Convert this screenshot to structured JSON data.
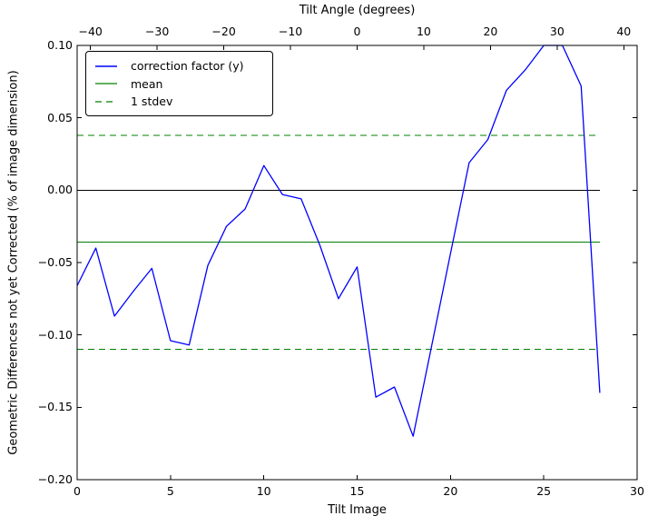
{
  "figure": {
    "background": "#ffffff"
  },
  "chart_data": {
    "type": "line",
    "top_axis_label": "Tilt Angle (degrees)",
    "bottom_axis_label": "Tilt Image",
    "y_axis_label": "Geometric Differences not yet Corrected (% of image dimension)",
    "axes": {
      "grid": false,
      "x_bottom": {
        "lim": [
          0,
          30
        ],
        "ticks": [
          0,
          5,
          10,
          15,
          20,
          25,
          30
        ],
        "tick_labels": [
          "0",
          "5",
          "10",
          "15",
          "20",
          "25",
          "30"
        ]
      },
      "x_top": {
        "lim": [
          -42,
          42
        ],
        "ticks": [
          -40,
          -30,
          -20,
          -10,
          0,
          10,
          20,
          30,
          40
        ],
        "tick_labels": [
          "−40",
          "−30",
          "−20",
          "−10",
          "0",
          "10",
          "20",
          "30",
          "40"
        ]
      },
      "y": {
        "lim": [
          -0.2,
          0.1
        ],
        "ticks": [
          0.1,
          0.05,
          0.0,
          -0.05,
          -0.1,
          -0.15,
          -0.2
        ],
        "tick_labels": [
          "0.10",
          "0.05",
          "0.00",
          "−0.05",
          "−0.10",
          "−0.15",
          "−0.20"
        ]
      }
    },
    "series": [
      {
        "name": "zero-line",
        "type": "hline",
        "color": "#000000",
        "linestyle": "solid",
        "value": 0.0,
        "x_span": [
          0,
          28
        ]
      },
      {
        "name": "mean",
        "type": "hline",
        "color": "#008000",
        "linestyle": "solid",
        "value": -0.036,
        "x_span": [
          0,
          28
        ]
      },
      {
        "name": "1 stdev",
        "type": "hline-pair",
        "color": "#008000",
        "linestyle": "dashed",
        "values": [
          0.038,
          -0.11
        ],
        "x_span": [
          0,
          28
        ]
      },
      {
        "name": "correction factor (y)",
        "type": "line",
        "color": "#0000ff",
        "linestyle": "solid",
        "x": [
          0,
          1,
          2,
          3,
          4,
          5,
          6,
          7,
          8,
          9,
          10,
          11,
          12,
          13,
          14,
          15,
          16,
          17,
          18,
          19,
          20,
          21,
          22,
          23,
          24,
          25,
          26,
          27,
          28
        ],
        "y": [
          -0.066,
          -0.04,
          -0.087,
          -0.07,
          -0.054,
          -0.104,
          -0.107,
          -0.052,
          -0.025,
          -0.013,
          0.017,
          -0.003,
          -0.006,
          -0.038,
          -0.075,
          -0.053,
          -0.143,
          -0.136,
          -0.17,
          -0.107,
          -0.044,
          0.019,
          0.035,
          0.069,
          0.083,
          0.1,
          0.1,
          0.072,
          -0.14
        ]
      }
    ],
    "legend": {
      "position": "upper left",
      "items": [
        {
          "label": "correction factor (y)",
          "color": "#0000ff",
          "linestyle": "solid"
        },
        {
          "label": "mean",
          "color": "#008000",
          "linestyle": "solid"
        },
        {
          "label": "1 stdev",
          "color": "#008000",
          "linestyle": "dashed"
        }
      ]
    }
  }
}
